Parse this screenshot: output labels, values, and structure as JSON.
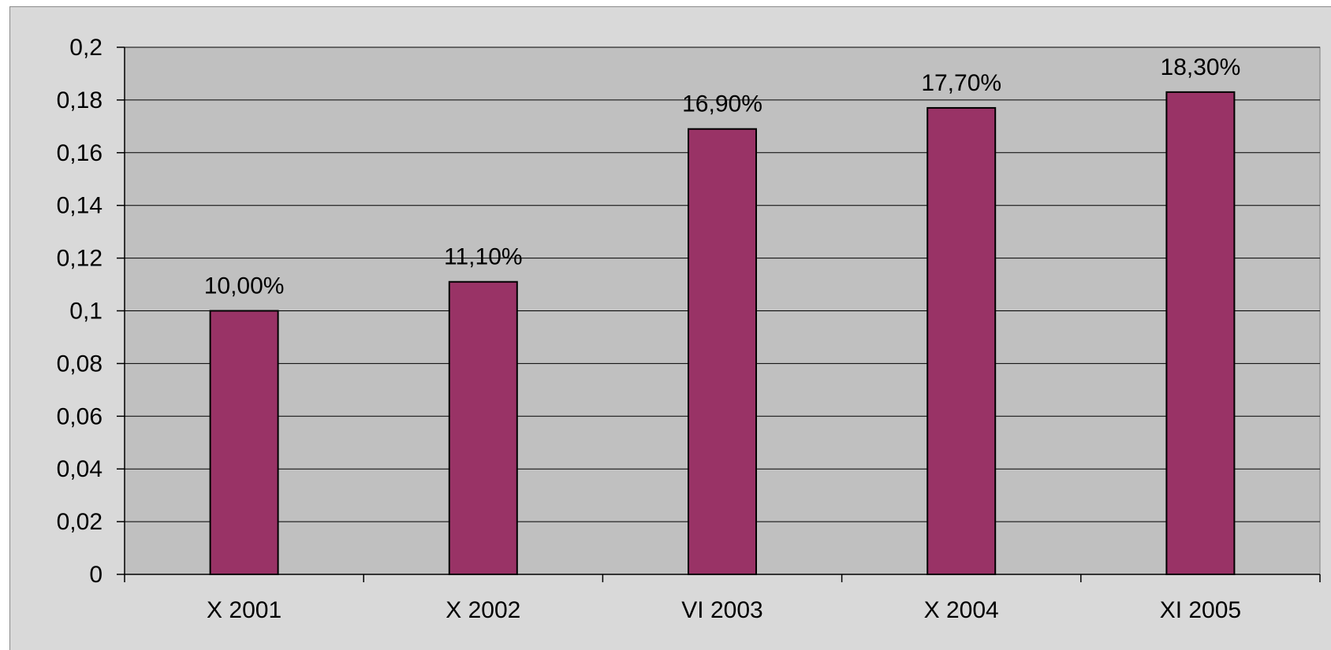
{
  "chart_data": {
    "type": "bar",
    "title": "",
    "xlabel": "",
    "ylabel": "",
    "categories": [
      "X 2001",
      "X 2002",
      "VI 2003",
      "X 2004",
      "XI 2005"
    ],
    "values": [
      0.1,
      0.111,
      0.169,
      0.177,
      0.183
    ],
    "data_labels": [
      "10,00%",
      "11,10%",
      "16,90%",
      "17,70%",
      "18,30%"
    ],
    "yticks": [
      0,
      0.02,
      0.04,
      0.06,
      0.08,
      0.1,
      0.12,
      0.14,
      0.16,
      0.18,
      0.2
    ],
    "ytick_labels": [
      "0",
      "0,02",
      "0,04",
      "0,06",
      "0,08",
      "0,1",
      "0,12",
      "0,14",
      "0,16",
      "0,18",
      "0,2"
    ],
    "ylim": [
      0,
      0.2
    ],
    "grid": true,
    "legend": "none",
    "colors": {
      "bar": "#993366",
      "plot_area": "#c0c0c0",
      "chart_area": "#d9d9d9",
      "gridline": "#000000"
    }
  }
}
